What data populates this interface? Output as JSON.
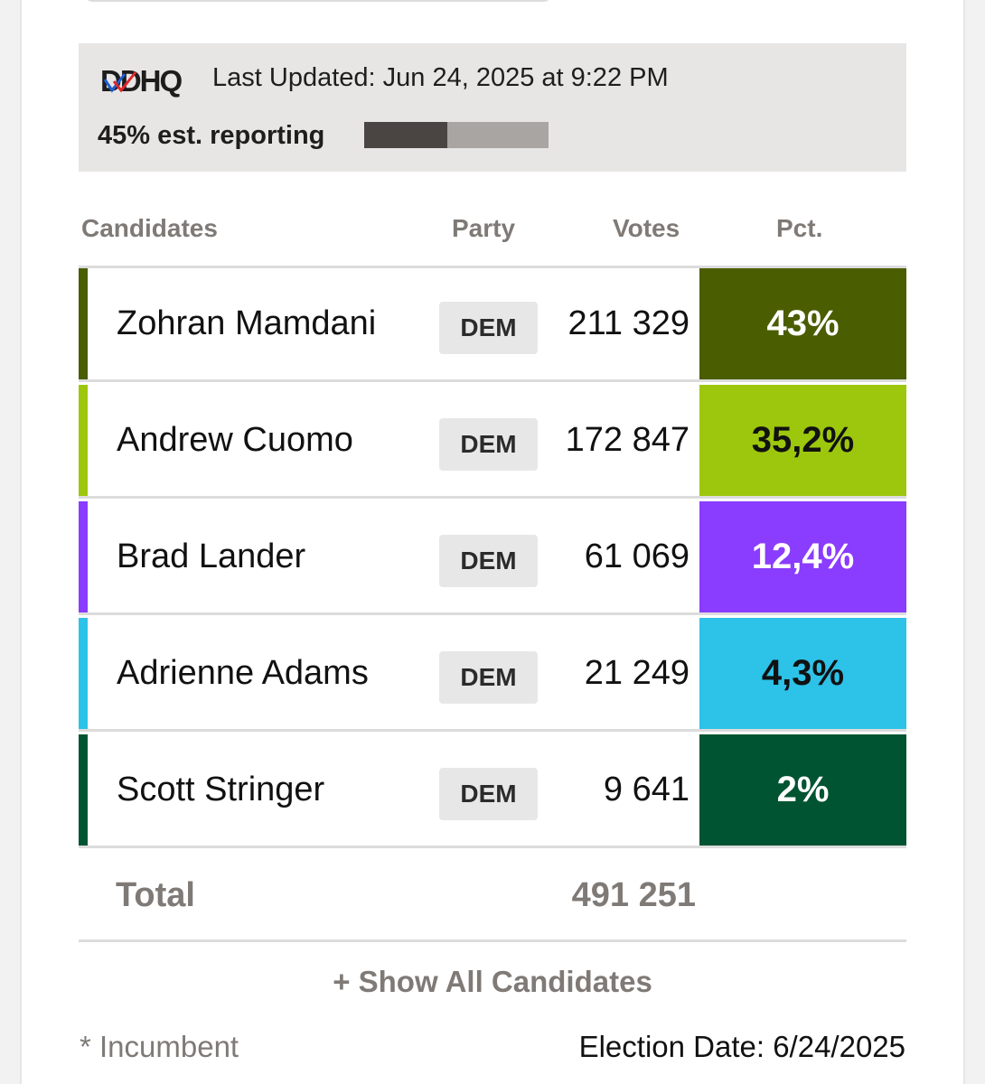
{
  "header": {
    "logo_text": "DDHQ",
    "last_updated": "Last Updated: Jun 24, 2025 at 9:22 PM",
    "reporting_label": "45% est. reporting",
    "reporting_fraction": 0.45
  },
  "columns": {
    "candidates": "Candidates",
    "party": "Party",
    "votes": "Votes",
    "pct": "Pct."
  },
  "candidates": [
    {
      "name": "Zohran Mamdani",
      "party": "DEM",
      "votes": "211 329",
      "pct": "43%",
      "color": "#4a5d00",
      "text_color": "#ffffff"
    },
    {
      "name": "Andrew Cuomo",
      "party": "DEM",
      "votes": "172 847",
      "pct": "35,2%",
      "color": "#9dc70c",
      "text_color": "#111111"
    },
    {
      "name": "Brad Lander",
      "party": "DEM",
      "votes": "61 069",
      "pct": "12,4%",
      "color": "#8a3cff",
      "text_color": "#ffffff"
    },
    {
      "name": "Adrienne Adams",
      "party": "DEM",
      "votes": "21 249",
      "pct": "4,3%",
      "color": "#2dc2e8",
      "text_color": "#111111"
    },
    {
      "name": "Scott Stringer",
      "party": "DEM",
      "votes": "9 641",
      "pct": "2%",
      "color": "#005432",
      "text_color": "#ffffff"
    }
  ],
  "total": {
    "label": "Total",
    "votes": "491 251"
  },
  "show_all": "+ Show All Candidates",
  "footer": {
    "incumbent": "* Incumbent",
    "election_date": "Election Date: 6/24/2025"
  },
  "colors": {
    "status_bg": "#e7e6e5",
    "reporting_fill": "#4a4542",
    "reporting_track": "#a9a5a2",
    "muted_text": "#7f7a76"
  }
}
